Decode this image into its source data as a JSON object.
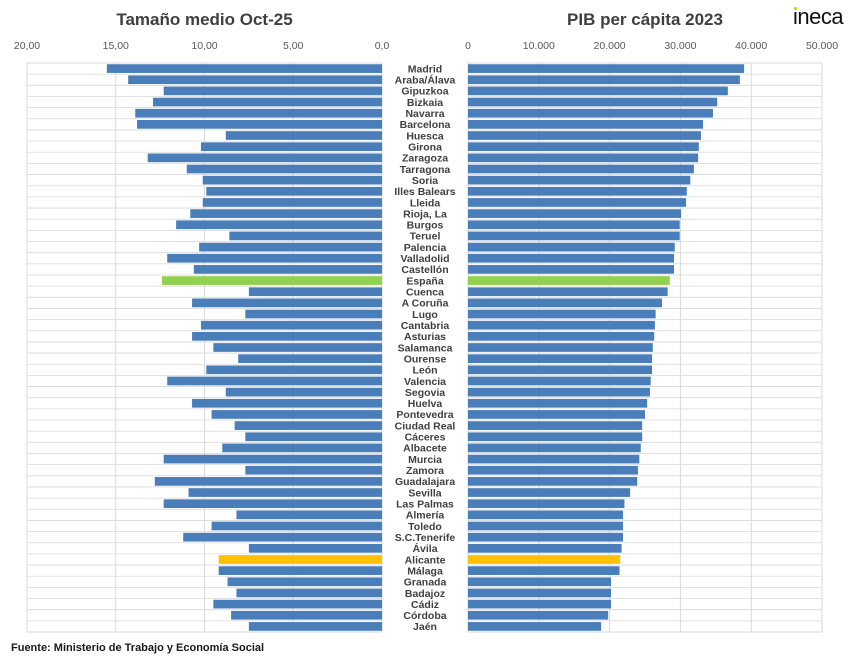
{
  "logo": "ineca",
  "source": "Fuente: Ministerio de Trabajo  y Economía Social",
  "colors": {
    "bar": "#4a7ebb",
    "spain": "#92d050",
    "alicante": "#ffc000",
    "grid": "#d9d9d9"
  },
  "chart_data": [
    {
      "type": "bar",
      "orientation": "horizontal-reversed",
      "title": "Tamaño medio Oct-25",
      "xlim": [
        0,
        20
      ],
      "ticks": [
        "20,00",
        "15,00",
        "10,00",
        "5,00",
        "0,0"
      ],
      "tick_values": [
        20,
        15,
        10,
        5,
        0
      ],
      "grid": true,
      "categories": [
        "Madrid",
        "Araba/Álava",
        "Gipuzkoa",
        "Bizkaia",
        "Navarra",
        "Barcelona",
        "Huesca",
        "Girona",
        "Zaragoza",
        "Tarragona",
        "Soria",
        "Illes Balears",
        "Lleida",
        "Rioja, La",
        "Burgos",
        "Teruel",
        "Palencia",
        "Valladolid",
        "Castellón",
        "España",
        "Cuenca",
        "A Coruña",
        "Lugo",
        "Cantabria",
        "Asturias",
        "Salamanca",
        "Ourense",
        "León",
        "Valencia",
        "Segovia",
        "Huelva",
        "Pontevedra",
        "Ciudad Real",
        "Cáceres",
        "Albacete",
        "Murcia",
        "Zamora",
        "Guadalajara",
        "Sevilla",
        "Las Palmas",
        "Almería",
        "Toledo",
        "S.C.Tenerife",
        "Ávila",
        "Alicante",
        "Málaga",
        "Granada",
        "Badajoz",
        "Cádiz",
        "Córdoba",
        "Jaén"
      ],
      "values": [
        15.5,
        14.3,
        12.3,
        12.9,
        13.9,
        13.8,
        8.8,
        10.2,
        13.2,
        11.0,
        10.1,
        9.9,
        10.1,
        10.8,
        11.6,
        8.6,
        10.3,
        12.1,
        10.6,
        12.4,
        7.5,
        10.7,
        7.7,
        10.2,
        10.7,
        9.5,
        8.1,
        9.9,
        12.1,
        8.8,
        10.7,
        9.6,
        8.3,
        7.7,
        9.0,
        12.3,
        7.7,
        12.8,
        10.9,
        12.3,
        8.2,
        9.6,
        11.2,
        7.5,
        9.2,
        9.2,
        8.7,
        8.2,
        9.5,
        8.5,
        7.5
      ],
      "highlights": {
        "España": "spain",
        "Alicante": "alicante"
      }
    },
    {
      "type": "bar",
      "orientation": "horizontal",
      "title": "PIB per cápita 2023",
      "xlim": [
        0,
        50000
      ],
      "ticks": [
        "0",
        "10.000",
        "20.000",
        "30.000",
        "40.000",
        "50.000"
      ],
      "tick_values": [
        0,
        10000,
        20000,
        30000,
        40000,
        50000
      ],
      "grid": true,
      "categories": [
        "Madrid",
        "Araba/Álava",
        "Gipuzkoa",
        "Bizkaia",
        "Navarra",
        "Barcelona",
        "Huesca",
        "Girona",
        "Zaragoza",
        "Tarragona",
        "Soria",
        "Illes Balears",
        "Lleida",
        "Rioja, La",
        "Burgos",
        "Teruel",
        "Palencia",
        "Valladolid",
        "Castellón",
        "España",
        "Cuenca",
        "A Coruña",
        "Lugo",
        "Cantabria",
        "Asturias",
        "Salamanca",
        "Ourense",
        "León",
        "Valencia",
        "Segovia",
        "Huelva",
        "Pontevedra",
        "Ciudad Real",
        "Cáceres",
        "Albacete",
        "Murcia",
        "Zamora",
        "Guadalajara",
        "Sevilla",
        "Las Palmas",
        "Almería",
        "Toledo",
        "S.C.Tenerife",
        "Ávila",
        "Alicante",
        "Málaga",
        "Granada",
        "Badajoz",
        "Cádiz",
        "Córdoba",
        "Jaén"
      ],
      "values": [
        39000,
        38400,
        36700,
        35200,
        34600,
        33200,
        32900,
        32600,
        32500,
        31900,
        31400,
        30900,
        30800,
        30100,
        29900,
        29900,
        29200,
        29100,
        29100,
        28500,
        28200,
        27400,
        26500,
        26400,
        26300,
        26100,
        26000,
        26000,
        25800,
        25700,
        25300,
        25000,
        24600,
        24600,
        24400,
        24200,
        24000,
        23900,
        22900,
        22100,
        21900,
        21900,
        21900,
        21700,
        21500,
        21400,
        20200,
        20200,
        20200,
        19800,
        18800
      ],
      "highlights": {
        "España": "spain",
        "Alicante": "alicante"
      }
    }
  ]
}
